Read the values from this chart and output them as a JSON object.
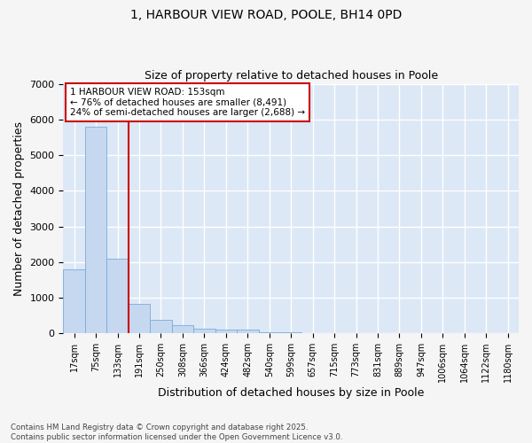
{
  "title1": "1, HARBOUR VIEW ROAD, POOLE, BH14 0PD",
  "title2": "Size of property relative to detached houses in Poole",
  "xlabel": "Distribution of detached houses by size in Poole",
  "ylabel": "Number of detached properties",
  "bar_color": "#c5d8f0",
  "bar_edge_color": "#7aabdc",
  "plot_bg_color": "#dce8f5",
  "fig_bg_color": "#f5f5f5",
  "grid_color": "#ffffff",
  "annotation_box_color": "#cc0000",
  "property_line_color": "#cc0000",
  "annotation_text": "1 HARBOUR VIEW ROAD: 153sqm\n← 76% of detached houses are smaller (8,491)\n24% of semi-detached houses are larger (2,688) →",
  "categories": [
    "17sqm",
    "75sqm",
    "133sqm",
    "191sqm",
    "250sqm",
    "308sqm",
    "366sqm",
    "424sqm",
    "482sqm",
    "540sqm",
    "599sqm",
    "657sqm",
    "715sqm",
    "773sqm",
    "831sqm",
    "889sqm",
    "947sqm",
    "1006sqm",
    "1064sqm",
    "1122sqm",
    "1180sqm"
  ],
  "bar_heights": [
    1800,
    5800,
    2100,
    830,
    380,
    240,
    140,
    100,
    100,
    30,
    20,
    15,
    0,
    0,
    0,
    0,
    0,
    0,
    0,
    0,
    0
  ],
  "ylim": [
    0,
    7000
  ],
  "yticks": [
    0,
    1000,
    2000,
    3000,
    4000,
    5000,
    6000,
    7000
  ],
  "property_line_x": 2.5,
  "footer_text": "Contains HM Land Registry data © Crown copyright and database right 2025.\nContains public sector information licensed under the Open Government Licence v3.0."
}
